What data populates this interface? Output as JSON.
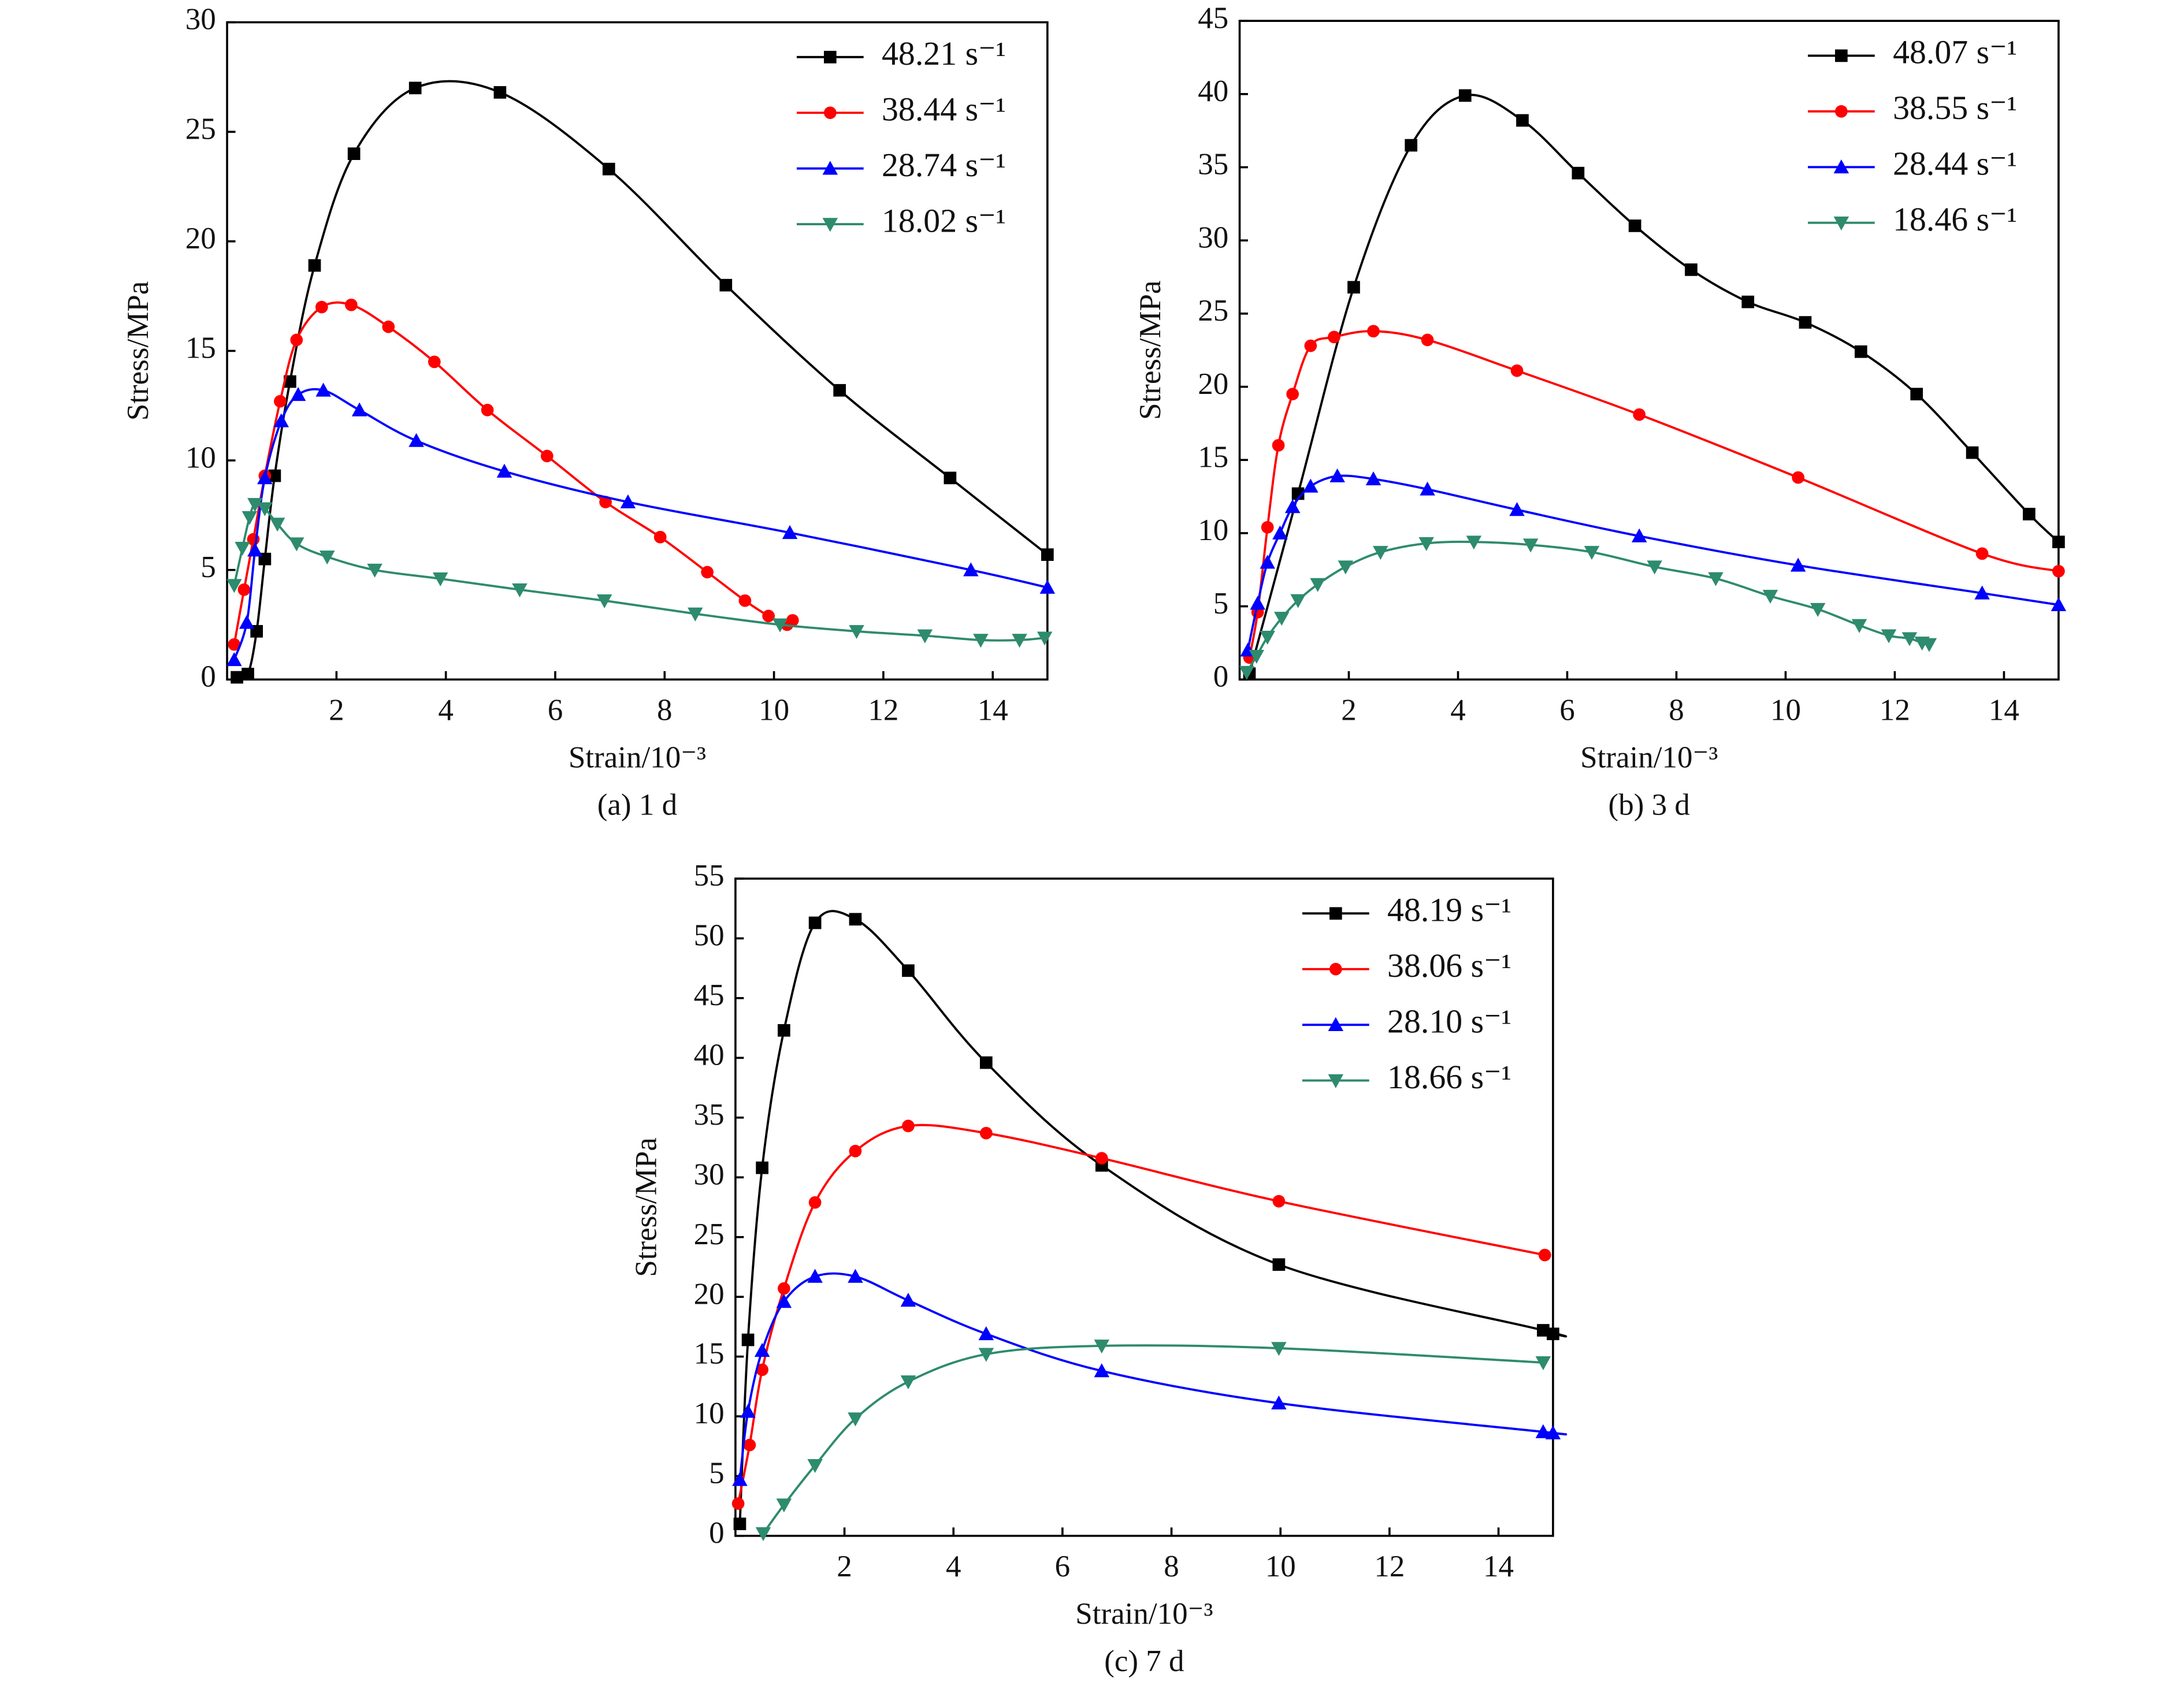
{
  "chart_data": [
    {
      "type": "line",
      "caption": "(a) 1 d",
      "xlabel": "Strain/10⁻³",
      "ylabel": "Stress/MPa",
      "xlim": [
        0,
        15
      ],
      "xticks": [
        2,
        4,
        6,
        8,
        10,
        12,
        14
      ],
      "ylim": [
        0,
        30
      ],
      "yticks": [
        0,
        5,
        10,
        15,
        20,
        25,
        30
      ],
      "legend": "upper right",
      "series": [
        {
          "name": "48.21 s⁻¹",
          "color": "#000000",
          "marker": "square",
          "x": [
            0.18,
            0.38,
            0.54,
            0.69,
            0.87,
            1.15,
            1.6,
            2.32,
            3.44,
            4.99,
            6.98,
            9.12,
            11.2,
            13.22,
            15
          ],
          "values": [
            0.1,
            0.25,
            2.2,
            5.5,
            9.3,
            13.6,
            18.9,
            24.0,
            27.0,
            26.8,
            23.3,
            18.0,
            13.2,
            9.2,
            5.7
          ]
        },
        {
          "name": "38.44 s⁻¹",
          "color": "#ff0000",
          "marker": "circle",
          "x": [
            0.13,
            0.31,
            0.48,
            0.69,
            0.97,
            1.27,
            1.73,
            2.27,
            2.95,
            3.79,
            4.76,
            5.85,
            6.92,
            7.92,
            8.78,
            9.47,
            9.9,
            10.24,
            10.34
          ],
          "values": [
            1.6,
            4.1,
            6.4,
            9.3,
            12.7,
            15.5,
            17.0,
            17.1,
            16.1,
            14.5,
            12.3,
            10.2,
            8.1,
            6.5,
            4.9,
            3.6,
            2.9,
            2.5,
            2.7
          ]
        },
        {
          "name": "28.74 s⁻¹",
          "color": "#0000ff",
          "marker": "triangle-up",
          "x": [
            0.13,
            0.36,
            0.51,
            0.69,
            0.99,
            1.3,
            1.76,
            2.42,
            3.46,
            5.07,
            7.33,
            10.29,
            13.6,
            15
          ],
          "values": [
            0.9,
            2.6,
            5.9,
            9.2,
            11.8,
            13.0,
            13.2,
            12.3,
            10.9,
            9.5,
            8.1,
            6.7,
            5.0,
            4.2
          ]
        },
        {
          "name": "18.02 s⁻¹",
          "color": "#2e8b6e",
          "marker": "triangle-down",
          "x": [
            0.13,
            0.28,
            0.41,
            0.51,
            0.69,
            0.92,
            1.27,
            1.83,
            2.7,
            3.9,
            5.35,
            6.9,
            8.56,
            10.11,
            11.51,
            12.76,
            13.78,
            14.49,
            14.95
          ],
          "values": [
            4.3,
            6.0,
            7.4,
            8.0,
            7.8,
            7.1,
            6.2,
            5.6,
            5.0,
            4.6,
            4.1,
            3.6,
            3.0,
            2.5,
            2.2,
            2.0,
            1.8,
            1.8,
            1.9
          ]
        }
      ]
    },
    {
      "type": "line",
      "caption": "(b) 3 d",
      "xlabel": "Strain/10⁻³",
      "ylabel": "Stress/MPa",
      "xlim": [
        0,
        15
      ],
      "xticks": [
        2,
        4,
        6,
        8,
        10,
        12,
        14
      ],
      "ylim": [
        0,
        45
      ],
      "yticks": [
        0,
        5,
        10,
        15,
        20,
        25,
        30,
        35,
        40,
        45
      ],
      "legend": "upper right",
      "series": [
        {
          "name": "48.07 s⁻¹",
          "color": "#000000",
          "marker": "square",
          "x": [
            0.18,
            1.07,
            2.09,
            3.14,
            4.13,
            5.18,
            6.2,
            7.24,
            8.27,
            9.31,
            10.36,
            11.38,
            12.4,
            13.42,
            14.46,
            15
          ],
          "values": [
            0.4,
            12.7,
            26.8,
            36.5,
            39.9,
            38.2,
            34.6,
            31.0,
            28.0,
            25.8,
            24.4,
            22.4,
            19.5,
            15.5,
            11.3,
            9.4
          ]
        },
        {
          "name": "38.55 s⁻¹",
          "color": "#ff0000",
          "marker": "circle",
          "x": [
            0.18,
            0.33,
            0.51,
            0.71,
            0.97,
            1.3,
            1.73,
            2.45,
            3.44,
            5.08,
            7.32,
            10.23,
            13.6,
            15
          ],
          "values": [
            1.5,
            4.6,
            10.4,
            16.0,
            19.5,
            22.8,
            23.4,
            23.8,
            23.2,
            21.1,
            18.1,
            13.8,
            8.6,
            7.4
          ]
        },
        {
          "name": "28.44 s⁻¹",
          "color": "#0000ff",
          "marker": "triangle-up",
          "x": [
            0.15,
            0.33,
            0.51,
            0.74,
            0.97,
            1.3,
            1.79,
            2.45,
            3.44,
            5.08,
            7.32,
            10.23,
            13.6,
            15
          ],
          "values": [
            2.0,
            5.2,
            8.0,
            10.0,
            11.8,
            13.2,
            13.9,
            13.7,
            13.0,
            11.6,
            9.8,
            7.8,
            5.9,
            5.1
          ]
        },
        {
          "name": "18.46 s⁻¹",
          "color": "#2e8b6e",
          "marker": "triangle-down",
          "x": [
            0.13,
            0.31,
            0.51,
            0.77,
            1.07,
            1.43,
            1.94,
            2.58,
            3.42,
            4.29,
            5.33,
            6.45,
            7.6,
            8.72,
            9.72,
            10.59,
            11.35,
            11.89,
            12.27,
            12.5,
            12.63
          ],
          "values": [
            0.5,
            1.6,
            2.9,
            4.2,
            5.4,
            6.5,
            7.7,
            8.7,
            9.3,
            9.4,
            9.2,
            8.7,
            7.7,
            6.9,
            5.7,
            4.8,
            3.7,
            3.0,
            2.8,
            2.5,
            2.4
          ]
        }
      ]
    },
    {
      "type": "line",
      "caption": "(c) 7 d",
      "xlabel": "Strain/10⁻³",
      "ylabel": "Stress/MPa",
      "xlim": [
        0,
        15
      ],
      "xticks": [
        2,
        4,
        6,
        8,
        10,
        12,
        14
      ],
      "ylim": [
        0,
        55
      ],
      "yticks": [
        0,
        5,
        10,
        15,
        20,
        25,
        30,
        35,
        40,
        45,
        50,
        55
      ],
      "legend": "upper right",
      "series": [
        {
          "name": "48.19 s⁻¹",
          "color": "#000000",
          "marker": "square",
          "x": [
            0.08,
            0.23,
            0.49,
            0.89,
            1.46,
            2.2,
            3.17,
            4.6,
            6.72,
            9.97,
            14.82,
            15
          ],
          "values": [
            1.0,
            16.4,
            30.8,
            42.3,
            51.3,
            51.6,
            47.3,
            39.6,
            31.0,
            22.7,
            17.2,
            16.9
          ]
        },
        {
          "name": "38.06 s⁻¹",
          "color": "#ff0000",
          "marker": "circle",
          "x": [
            0.05,
            0.26,
            0.49,
            0.89,
            1.46,
            2.2,
            3.17,
            4.6,
            6.72,
            9.97,
            14.85
          ],
          "values": [
            2.7,
            7.6,
            13.9,
            20.7,
            27.9,
            32.2,
            34.3,
            33.7,
            31.6,
            28.0,
            23.5
          ]
        },
        {
          "name": "28.10 s⁻¹",
          "color": "#0000ff",
          "marker": "triangle-up",
          "x": [
            0.08,
            0.23,
            0.49,
            0.89,
            1.46,
            2.2,
            3.17,
            4.6,
            6.72,
            9.97,
            14.82,
            15
          ],
          "values": [
            4.7,
            10.4,
            15.5,
            19.6,
            21.7,
            21.7,
            19.7,
            16.9,
            13.8,
            11.1,
            8.7,
            8.6
          ]
        },
        {
          "name": "18.66 s⁻¹",
          "color": "#2e8b6e",
          "marker": "triangle-down",
          "x": [
            0.51,
            0.89,
            1.46,
            2.2,
            3.17,
            4.6,
            6.72,
            9.97,
            14.82
          ],
          "values": [
            0.2,
            2.6,
            5.9,
            9.8,
            12.9,
            15.2,
            15.9,
            15.7,
            14.5
          ]
        }
      ]
    }
  ]
}
